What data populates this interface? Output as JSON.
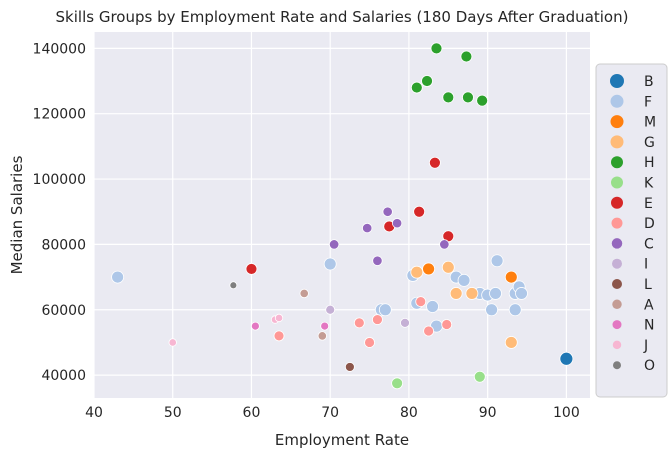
{
  "chart_data": {
    "type": "scatter",
    "title": "Skills Groups by Employment Rate and Salaries (180 Days After Graduation)",
    "xlabel": "Employment Rate",
    "ylabel": "Median Salaries",
    "xlim": [
      40,
      103
    ],
    "ylim": [
      33000,
      145000
    ],
    "xticks": [
      40,
      50,
      60,
      70,
      80,
      90,
      100
    ],
    "yticks": [
      40000,
      60000,
      80000,
      100000,
      120000,
      140000
    ],
    "grid": true,
    "legend_position": "right",
    "series": [
      {
        "name": "B",
        "color": "#1f77b4",
        "points": [
          [
            100,
            45000
          ]
        ]
      },
      {
        "name": "F",
        "color": "#aec7e8",
        "points": [
          [
            43,
            70000
          ],
          [
            70,
            74000
          ],
          [
            76.5,
            60000
          ],
          [
            77,
            60000
          ],
          [
            80.5,
            70500
          ],
          [
            81,
            62000
          ],
          [
            83,
            61000
          ],
          [
            83.5,
            55000
          ],
          [
            86,
            70000
          ],
          [
            87,
            69000
          ],
          [
            89,
            65000
          ],
          [
            90,
            64500
          ],
          [
            90.5,
            60000
          ],
          [
            91,
            65000
          ],
          [
            91.2,
            75000
          ],
          [
            93.5,
            60000
          ],
          [
            93.5,
            65000
          ],
          [
            94,
            67000
          ],
          [
            94.3,
            65000
          ]
        ]
      },
      {
        "name": "M",
        "color": "#ff7f0e",
        "points": [
          [
            82.5,
            72500
          ],
          [
            93,
            70000
          ]
        ]
      },
      {
        "name": "G",
        "color": "#ffbb78",
        "points": [
          [
            81,
            71500
          ],
          [
            85,
            73000
          ],
          [
            86,
            65000
          ],
          [
            88,
            65000
          ],
          [
            93,
            50000
          ]
        ]
      },
      {
        "name": "H",
        "color": "#2ca02c",
        "points": [
          [
            81,
            128000
          ],
          [
            82.3,
            130000
          ],
          [
            83.5,
            140000
          ],
          [
            85,
            125000
          ],
          [
            87.3,
            137500
          ],
          [
            87.5,
            125000
          ],
          [
            89.3,
            124000
          ]
        ]
      },
      {
        "name": "K",
        "color": "#98df8a",
        "points": [
          [
            78.5,
            37500
          ],
          [
            89,
            39500
          ]
        ]
      },
      {
        "name": "E",
        "color": "#d62728",
        "points": [
          [
            60,
            72500
          ],
          [
            77.5,
            85500
          ],
          [
            81.3,
            90000
          ],
          [
            83.3,
            105000
          ],
          [
            85,
            82500
          ]
        ]
      },
      {
        "name": "D",
        "color": "#ff9896",
        "points": [
          [
            63.5,
            52000
          ],
          [
            73.7,
            56000
          ],
          [
            75,
            50000
          ],
          [
            76,
            57000
          ],
          [
            81.5,
            62500
          ],
          [
            82.5,
            53500
          ],
          [
            84.8,
            55500
          ]
        ]
      },
      {
        "name": "C",
        "color": "#9467bd",
        "points": [
          [
            70.5,
            80000
          ],
          [
            74.7,
            85000
          ],
          [
            76,
            75000
          ],
          [
            77.3,
            90000
          ],
          [
            78.5,
            86500
          ],
          [
            84.5,
            80000
          ]
        ]
      },
      {
        "name": "I",
        "color": "#c5b0d5",
        "points": [
          [
            70,
            60000
          ],
          [
            79.5,
            56000
          ]
        ]
      },
      {
        "name": "L",
        "color": "#8c564b",
        "points": [
          [
            72.5,
            42500
          ]
        ]
      },
      {
        "name": "A",
        "color": "#c49c94",
        "points": [
          [
            66.7,
            65000
          ],
          [
            69,
            52000
          ]
        ]
      },
      {
        "name": "N",
        "color": "#e377c2",
        "points": [
          [
            60.5,
            55000
          ],
          [
            69.3,
            55000
          ]
        ]
      },
      {
        "name": "J",
        "color": "#f7b6d2",
        "points": [
          [
            50,
            50000
          ],
          [
            63,
            57000
          ],
          [
            63.5,
            57500
          ]
        ]
      },
      {
        "name": "O",
        "color": "#7f7f7f",
        "points": [
          [
            57.7,
            67500
          ]
        ]
      }
    ],
    "point_sizes": {
      "B": 11,
      "F": 10,
      "M": 10,
      "G": 10,
      "H": 9,
      "K": 9,
      "E": 9,
      "D": 8,
      "C": 7.5,
      "I": 7,
      "L": 7,
      "A": 6.5,
      "N": 6,
      "J": 5.5,
      "O": 5
    }
  }
}
